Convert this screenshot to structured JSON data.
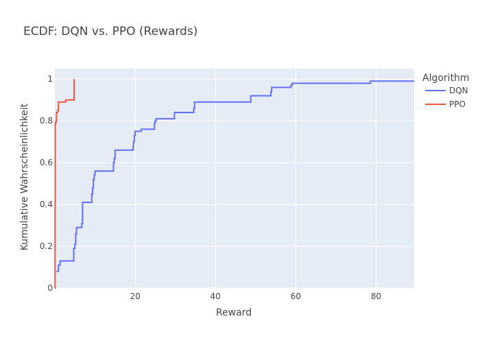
{
  "chart_data": {
    "type": "line",
    "title": "ECDF: DQN vs. PPO (Rewards)",
    "xlabel": "Reward",
    "ylabel": "Kumulative Wahrscheinlichkeit",
    "xlim": [
      0,
      89.5
    ],
    "ylim": [
      0,
      1.05
    ],
    "x_ticks": [
      20,
      40,
      60,
      80
    ],
    "x_tick_labels": [
      "20",
      "40",
      "60",
      "80"
    ],
    "y_ticks": [
      0,
      0.2,
      0.4,
      0.6,
      0.8,
      1
    ],
    "y_tick_labels": [
      "0",
      "0.2",
      "0.4",
      "0.6",
      "0.8",
      "1"
    ],
    "grid": true,
    "legend": {
      "title": "Algorithm",
      "placement": "right"
    },
    "plot_bg": "#e5ecf6",
    "series": [
      {
        "name": "DQN",
        "color": "#636efa",
        "step_points": [
          [
            0.4,
            0.08
          ],
          [
            0.9,
            0.11
          ],
          [
            1.3,
            0.13
          ],
          [
            4.6,
            0.13
          ],
          [
            4.7,
            0.19
          ],
          [
            5.0,
            0.21
          ],
          [
            5.2,
            0.26
          ],
          [
            5.4,
            0.29
          ],
          [
            6.6,
            0.29
          ],
          [
            6.7,
            0.31
          ],
          [
            6.9,
            0.41
          ],
          [
            9.0,
            0.41
          ],
          [
            9.2,
            0.45
          ],
          [
            9.4,
            0.48
          ],
          [
            9.6,
            0.52
          ],
          [
            9.8,
            0.54
          ],
          [
            10.0,
            0.56
          ],
          [
            14.4,
            0.56
          ],
          [
            14.6,
            0.6
          ],
          [
            14.8,
            0.62
          ],
          [
            15.0,
            0.66
          ],
          [
            19.3,
            0.66
          ],
          [
            19.5,
            0.68
          ],
          [
            19.6,
            0.7
          ],
          [
            19.8,
            0.73
          ],
          [
            20.0,
            0.75
          ],
          [
            21.3,
            0.75
          ],
          [
            21.5,
            0.76
          ],
          [
            24.6,
            0.76
          ],
          [
            24.8,
            0.79
          ],
          [
            25.0,
            0.8
          ],
          [
            25.2,
            0.81
          ],
          [
            29.6,
            0.81
          ],
          [
            29.8,
            0.84
          ],
          [
            34.4,
            0.84
          ],
          [
            34.6,
            0.86
          ],
          [
            34.8,
            0.89
          ],
          [
            48.6,
            0.89
          ],
          [
            48.8,
            0.92
          ],
          [
            53.6,
            0.92
          ],
          [
            53.8,
            0.94
          ],
          [
            54.0,
            0.96
          ],
          [
            58.6,
            0.96
          ],
          [
            58.8,
            0.97
          ],
          [
            59.1,
            0.98
          ],
          [
            78.4,
            0.98
          ],
          [
            78.6,
            0.99
          ],
          [
            89.5,
            0.99
          ]
        ]
      },
      {
        "name": "PPO",
        "color": "#ef553b",
        "step_points": [
          [
            0.0,
            0.0
          ],
          [
            0.05,
            0.4
          ],
          [
            0.1,
            0.79
          ],
          [
            0.3,
            0.8
          ],
          [
            0.4,
            0.84
          ],
          [
            0.7,
            0.85
          ],
          [
            0.9,
            0.89
          ],
          [
            2.5,
            0.89
          ],
          [
            2.7,
            0.9
          ],
          [
            4.8,
            0.9
          ],
          [
            4.8,
            1.0
          ]
        ]
      }
    ]
  }
}
